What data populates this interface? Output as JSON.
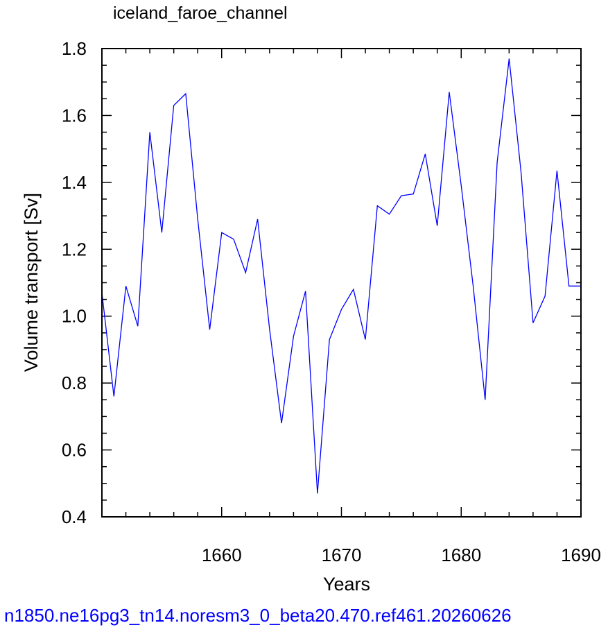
{
  "chart_data": {
    "type": "line",
    "title": "iceland_faroe_channel",
    "xlabel": "Years",
    "ylabel": "Volume transport [Sv]",
    "xlim": [
      1650,
      1690
    ],
    "ylim": [
      0.4,
      1.8
    ],
    "xticks": [
      1660,
      1670,
      1680,
      1690
    ],
    "xtick_labels": [
      "1660",
      "1670",
      "1680",
      "1690"
    ],
    "yticks": [
      0.4,
      0.6,
      0.8,
      1.0,
      1.2,
      1.4,
      1.6,
      1.8
    ],
    "ytick_labels": [
      "0.4",
      "0.6",
      "0.8",
      "1.0",
      "1.2",
      "1.4",
      "1.6",
      "1.8"
    ],
    "grid": false,
    "line_color": "#0000ff",
    "series": [
      {
        "x": [
          1650,
          1651,
          1652,
          1653,
          1654,
          1655,
          1656,
          1657,
          1658,
          1659,
          1660,
          1661,
          1662,
          1663,
          1664,
          1665,
          1666,
          1667,
          1668,
          1669,
          1670,
          1671,
          1672,
          1673,
          1674,
          1675,
          1676,
          1677,
          1678,
          1679,
          1680,
          1681,
          1682,
          1683,
          1684,
          1685,
          1686,
          1687,
          1688,
          1689,
          1690
        ],
        "values": [
          1.07,
          0.76,
          1.09,
          0.97,
          1.55,
          1.25,
          1.63,
          1.665,
          1.29,
          0.96,
          1.25,
          1.23,
          1.13,
          1.29,
          0.96,
          0.68,
          0.94,
          1.075,
          0.47,
          0.93,
          1.02,
          1.08,
          0.93,
          1.33,
          1.305,
          1.36,
          1.365,
          1.485,
          1.27,
          1.67,
          1.39,
          1.09,
          0.75,
          1.46,
          1.77,
          1.43,
          0.98,
          1.06,
          1.435,
          1.09,
          1.09
        ]
      }
    ]
  },
  "footer": {
    "text": "n1850.ne16pg3_tn14.noresm3_0_beta20.470.ref461.20260626",
    "color": "#0000ff"
  }
}
